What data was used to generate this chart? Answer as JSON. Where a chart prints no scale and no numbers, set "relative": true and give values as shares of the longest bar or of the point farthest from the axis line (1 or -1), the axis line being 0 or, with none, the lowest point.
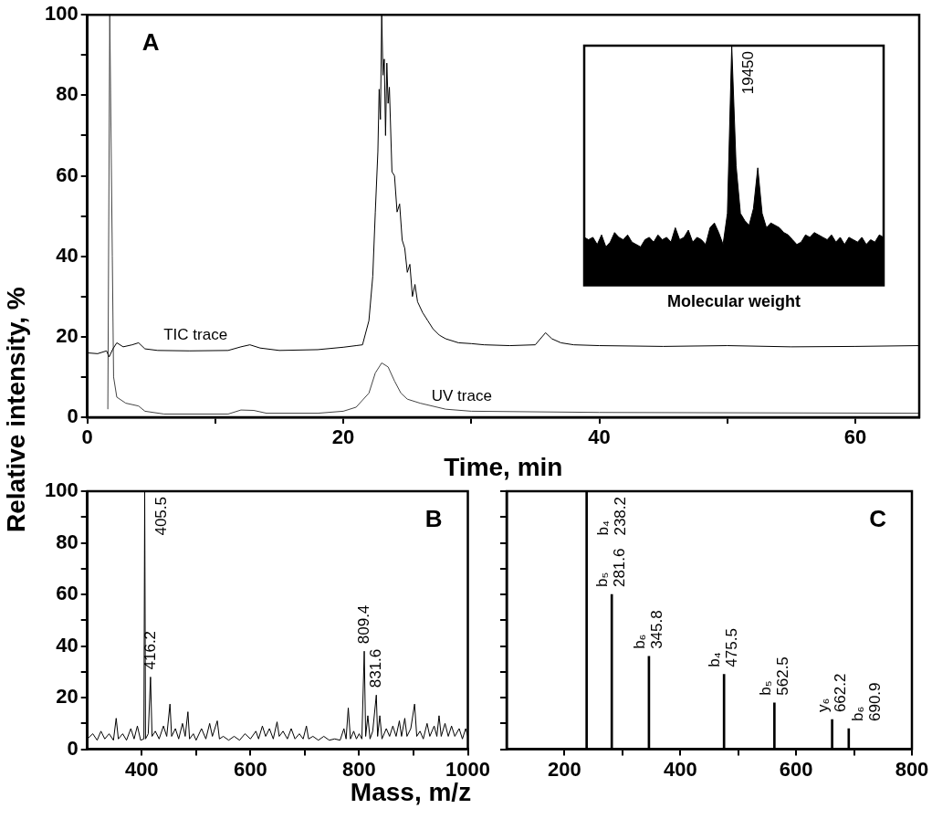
{
  "chart_data": [
    {
      "type": "line",
      "title": "A",
      "xlabel": "Time, min",
      "ylabel": "Relative intensity, %",
      "series": [
        {
          "name": "TIC trace",
          "color": "#000000",
          "x": [
            0,
            0.8,
            1.5,
            1.7,
            2.0,
            2.3,
            2.8,
            3.5,
            4.0,
            4.5,
            5.5,
            8,
            11,
            12,
            12.7,
            13.5,
            15,
            18,
            20,
            21,
            21.5,
            22,
            22.3,
            22.5,
            22.7,
            22.8,
            22.9,
            23.0,
            23.1,
            23.2,
            23.3,
            23.4,
            23.5,
            23.6,
            23.8,
            24.0,
            24.2,
            24.4,
            24.6,
            24.8,
            25.0,
            25.2,
            25.4,
            25.6,
            25.8,
            26.2,
            26.6,
            27.0,
            27.5,
            28,
            29,
            30,
            31,
            33,
            35,
            35.8,
            36.3,
            37,
            38,
            40,
            45,
            50,
            55,
            60,
            65
          ],
          "values": [
            16,
            15.8,
            16.5,
            15,
            17,
            18.5,
            17.5,
            18,
            18.5,
            17,
            16.6,
            16.5,
            16.6,
            17.5,
            18,
            17.2,
            16.6,
            16.8,
            17.4,
            17.8,
            18,
            24,
            35,
            51,
            66,
            81.5,
            74,
            100,
            85,
            89,
            70,
            88,
            78,
            82,
            61,
            60,
            51,
            53,
            44,
            42,
            36,
            38,
            30,
            33,
            28.7,
            26,
            24,
            22,
            20.4,
            19.5,
            18.5,
            18.3,
            18,
            17.8,
            18,
            21,
            19.5,
            18.5,
            18,
            17.8,
            17.6,
            17.8,
            17.5,
            17.6,
            17.8
          ]
        },
        {
          "name": "UV trace",
          "color": "#444444",
          "x": [
            1.6,
            1.75,
            1.95,
            2.05,
            2.3,
            3,
            4,
            4.5,
            6,
            11,
            12,
            13,
            14,
            18,
            20,
            21,
            22,
            22.5,
            23,
            23.5,
            24,
            24.5,
            25,
            26,
            28,
            30,
            40,
            65
          ],
          "values": [
            2,
            100,
            40,
            10,
            5,
            3.5,
            2.8,
            1.5,
            0.8,
            0.8,
            1.8,
            1.7,
            1,
            1,
            1.5,
            2.5,
            6,
            11,
            13.5,
            12.5,
            9,
            6,
            4.5,
            3.5,
            2,
            1.5,
            1.2,
            1
          ]
        }
      ],
      "xlim": [
        0,
        65
      ],
      "ylim": [
        0,
        100
      ],
      "xticks": [
        0,
        {
          "value": 10,
          "label": null
        },
        20,
        {
          "value": 30,
          "label": null
        },
        40,
        {
          "value": 50,
          "label": null
        },
        60
      ],
      "yticks": [
        0,
        {
          "value": 10,
          "label": null
        },
        20,
        {
          "value": 30,
          "label": null
        },
        40,
        {
          "value": 50,
          "label": null
        },
        60,
        {
          "value": 70,
          "label": null
        },
        80,
        {
          "value": 90,
          "label": null
        },
        100
      ]
    },
    {
      "type": "area",
      "relative": true,
      "xlabel": "Molecular weight",
      "tick_labels": false,
      "color": "#000000",
      "categories": [
        null,
        null,
        null,
        null,
        null,
        null,
        null,
        null,
        null,
        null,
        null,
        null,
        null,
        null,
        null,
        null,
        null,
        null,
        null,
        null,
        null,
        null,
        null,
        null,
        null,
        null,
        null,
        null,
        null,
        null,
        null,
        null,
        null,
        null,
        null,
        null,
        null,
        null,
        null,
        null,
        null,
        null,
        null,
        null,
        null,
        null,
        null,
        null,
        null,
        null,
        null,
        null,
        null,
        null,
        null,
        null,
        null,
        null,
        null,
        null,
        null,
        null,
        null,
        null,
        null,
        null,
        null,
        null,
        null,
        null
      ],
      "values": [
        0.2,
        0.19,
        0.2,
        0.17,
        0.21,
        0.16,
        0.18,
        0.22,
        0.2,
        0.19,
        0.21,
        0.18,
        0.17,
        0.16,
        0.19,
        0.2,
        0.18,
        0.21,
        0.19,
        0.2,
        0.18,
        0.24,
        0.19,
        0.2,
        0.23,
        0.18,
        0.2,
        0.19,
        0.17,
        0.24,
        0.26,
        0.22,
        0.17,
        0.3,
        1,
        0.5,
        0.3,
        0.27,
        0.25,
        0.32,
        0.49,
        0.3,
        0.24,
        0.26,
        0.25,
        0.24,
        0.22,
        0.21,
        0.19,
        0.17,
        0.18,
        0.21,
        0.2,
        0.22,
        0.21,
        0.2,
        0.19,
        0.21,
        0.18,
        0.2,
        0.17,
        0.2,
        0.19,
        0.18,
        0.2,
        0.17,
        0.19,
        0.18,
        0.21,
        0.2
      ],
      "annotations": [
        "19450"
      ]
    },
    {
      "type": "line",
      "title": "B",
      "xlabel": "Mass, m/z",
      "color": "#000000",
      "x": [
        300,
        310,
        318,
        325,
        332,
        340,
        348,
        353,
        357,
        365,
        372,
        380,
        386,
        392,
        398,
        404,
        405.5,
        407,
        412,
        416.2,
        419,
        425,
        432,
        440,
        446,
        452,
        455,
        462,
        468,
        475,
        480,
        485,
        488,
        495,
        500,
        510,
        518,
        525,
        530,
        539,
        543,
        550,
        560,
        570,
        580,
        590,
        600,
        610,
        615,
        622,
        628,
        635,
        642,
        649,
        653,
        660,
        668,
        675,
        682,
        690,
        697,
        703,
        707,
        715,
        725,
        735,
        745,
        755,
        765,
        772,
        776,
        780,
        784,
        790,
        795,
        800,
        805,
        809.4,
        812,
        816,
        820,
        825,
        831.6,
        834,
        838,
        842,
        850,
        856,
        862,
        868,
        874,
        878,
        884,
        888,
        895,
        902,
        906,
        912,
        918,
        925,
        930,
        938,
        943,
        947,
        951,
        958,
        964,
        970,
        976,
        984,
        990,
        996,
        1000
      ],
      "values": [
        4,
        6,
        3.5,
        7,
        4,
        6,
        3.5,
        12,
        4,
        6,
        3.5,
        8,
        4,
        9,
        3.5,
        4,
        100,
        4,
        6,
        28,
        5,
        7,
        4,
        9,
        5,
        17.5,
        5,
        8,
        4,
        10,
        5,
        14.5,
        4,
        6,
        3.5,
        8,
        4,
        10,
        5,
        11,
        4,
        5,
        3.5,
        5,
        3.5,
        6,
        4,
        7,
        4,
        9,
        5,
        8,
        4,
        10.6,
        5,
        7,
        4,
        8,
        4,
        6,
        4,
        9,
        4,
        5,
        3.5,
        5,
        3.5,
        4,
        3.5,
        8,
        4,
        16,
        4,
        7,
        4,
        6,
        4,
        38,
        5,
        13,
        4,
        7,
        21,
        5,
        13,
        4,
        8,
        5,
        9,
        5,
        11,
        5,
        12,
        5,
        8,
        17.5,
        5,
        7,
        4,
        10,
        5,
        9,
        5,
        13,
        5,
        10,
        5,
        9,
        5,
        8,
        4,
        8,
        5
      ],
      "xlim": [
        300,
        1000
      ],
      "ylim": [
        0,
        100
      ],
      "xticks": [
        400,
        {
          "value": 500,
          "label": null
        },
        600,
        {
          "value": 700,
          "label": null
        },
        800,
        {
          "value": 900,
          "label": null
        },
        1000
      ],
      "yticks": [
        0,
        {
          "value": 10,
          "label": null
        },
        20,
        {
          "value": 30,
          "label": null
        },
        40,
        {
          "value": 50,
          "label": null
        },
        60,
        {
          "value": 70,
          "label": null
        },
        80,
        {
          "value": 90,
          "label": null
        },
        100
      ],
      "annotations": [
        {
          "text": "405.5",
          "x": 405.5,
          "y": 100
        },
        {
          "text": "416.2",
          "x": 416.2,
          "y": 28
        },
        {
          "text": "809.4",
          "x": 809.4,
          "y": 38
        },
        {
          "text": "831.6",
          "x": 831.6,
          "y": 21
        }
      ]
    },
    {
      "type": "bar",
      "title": "C",
      "color": "#000000",
      "tick_labels": "x",
      "x": [
        238.2,
        281.6,
        345.8,
        475.5,
        562.5,
        662.2,
        690.9
      ],
      "values": [
        100,
        60,
        36,
        29,
        18,
        11.5,
        8
      ],
      "xlim": [
        100,
        800
      ],
      "ylim": [
        0,
        100
      ],
      "xticks": [
        200,
        {
          "value": 300,
          "label": null
        },
        400,
        {
          "value": 500,
          "label": null
        },
        600,
        {
          "value": 700,
          "label": null
        },
        800
      ],
      "yticks": [
        0,
        {
          "value": 10,
          "label": null
        },
        20,
        {
          "value": 30,
          "label": null
        },
        40,
        {
          "value": 50,
          "label": null
        },
        60,
        {
          "value": 70,
          "label": null
        },
        80,
        {
          "value": 90,
          "label": null
        },
        100
      ],
      "annotations": [
        {
          "text": "b₄ 238.2",
          "x": 238.2,
          "y": 100
        },
        {
          "text": "b₅ 281.6",
          "x": 281.6,
          "y": 60
        },
        {
          "text": "b₆ 345.8",
          "x": 345.8,
          "y": 36
        },
        {
          "text": "b₄ 475.5",
          "x": 475.5,
          "y": 29
        },
        {
          "text": "b₅ 562.5",
          "x": 562.5,
          "y": 18
        },
        {
          "text": "y₆ 662.2",
          "x": 662.2,
          "y": 11.5
        },
        {
          "text": "b₆ 690.9",
          "x": 690.9,
          "y": 8
        }
      ]
    }
  ]
}
